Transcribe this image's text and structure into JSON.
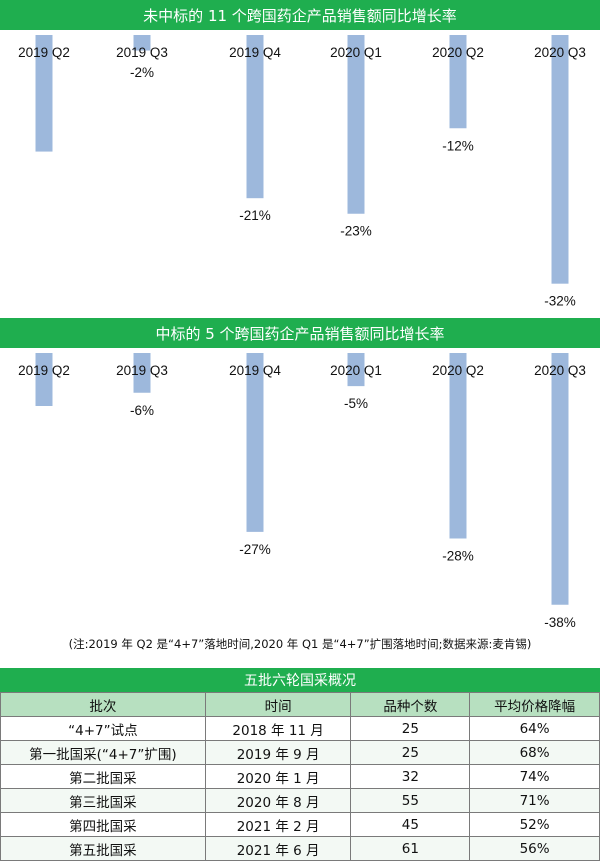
{
  "chart_data": [
    {
      "type": "bar",
      "title": "未中标的 11 个跨国药企产品销售额同比增长率",
      "categories": [
        "2019 Q2",
        "2019 Q3",
        "2019 Q4",
        "2020 Q1",
        "2020 Q2",
        "2020 Q3"
      ],
      "values": [
        -15,
        -2,
        -21,
        -23,
        -12,
        -32
      ],
      "data_labels": [
        "",
        "-2%",
        "-21%",
        "-23%",
        "-12%",
        "-32%"
      ],
      "ylim": [
        -35,
        0
      ],
      "xlabel": "",
      "ylabel": "",
      "grid": false,
      "bar_color": "#9db8dc"
    },
    {
      "type": "bar",
      "title": "中标的 5 个跨国药企产品销售额同比增长率",
      "categories": [
        "2019 Q2",
        "2019 Q3",
        "2019 Q4",
        "2020 Q1",
        "2020 Q2",
        "2020 Q3"
      ],
      "values": [
        -8,
        -6,
        -27,
        -5,
        -28,
        -38
      ],
      "data_labels": [
        "",
        "-6%",
        "-27%",
        "-5%",
        "-28%",
        "-38%"
      ],
      "ylim": [
        -40,
        0
      ],
      "xlabel": "",
      "ylabel": "",
      "grid": false,
      "bar_color": "#9db8dc"
    }
  ],
  "note": "(注:2019 年 Q2 是“4+7”落地时间,2020 年 Q1 是“4+7”扩围落地时间;数据来源:麦肯锡)",
  "table": {
    "title": "五批六轮国采概况",
    "headers": [
      "批次",
      "时间",
      "品种个数",
      "平均价格降幅"
    ],
    "rows": [
      [
        "“4+7”试点",
        "2018 年 11 月",
        "25",
        "64%"
      ],
      [
        "第一批国采(“4+7”扩围)",
        "2019 年 9 月",
        "25",
        "68%"
      ],
      [
        "第二批国采",
        "2020 年 1 月",
        "32",
        "74%"
      ],
      [
        "第三批国采",
        "2020 年 8 月",
        "55",
        "71%"
      ],
      [
        "第四批国采",
        "2021 年 2 月",
        "45",
        "52%"
      ],
      [
        "第五批国采",
        "2021 年 6 月",
        "61",
        "56%"
      ]
    ]
  },
  "colors": {
    "banner_green": "#1fae4f",
    "header_green": "#b7e0c0",
    "bar_blue": "#9db8dc"
  }
}
